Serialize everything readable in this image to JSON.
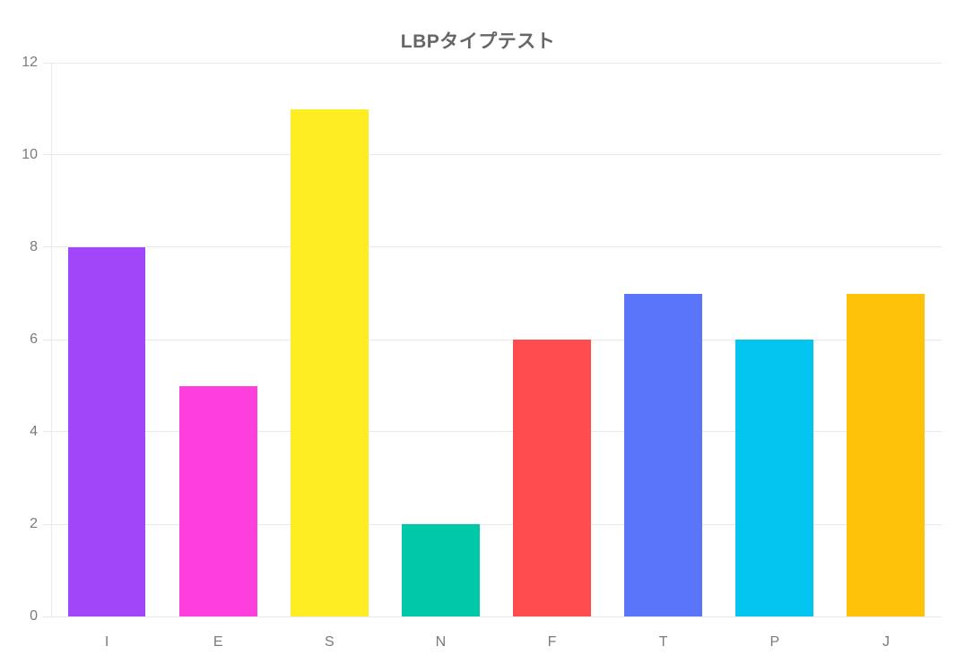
{
  "chart_data": {
    "type": "bar",
    "title": "LBPタイプテスト",
    "categories": [
      "I",
      "E",
      "S",
      "N",
      "F",
      "T",
      "P",
      "J"
    ],
    "values": [
      8,
      5,
      11,
      2,
      6,
      7,
      6,
      7
    ],
    "bar_colors": [
      "#A246FA",
      "#FF3EDE",
      "#FFED24",
      "#00C9A7",
      "#FF4D4F",
      "#5A74FA",
      "#03C5EF",
      "#FFC20A"
    ],
    "xlabel": "",
    "ylabel": "",
    "ylim": [
      0,
      12
    ],
    "yticks": [
      0,
      2,
      4,
      6,
      8,
      10,
      12
    ],
    "grid": "horizontal-only",
    "legend_position": "none",
    "bar_width_fraction": 0.7,
    "colors": {
      "background": "#FFFFFF",
      "title_text": "#666666",
      "tick_text": "#7A7A7A",
      "grid_line": "#E9E9E9"
    }
  }
}
